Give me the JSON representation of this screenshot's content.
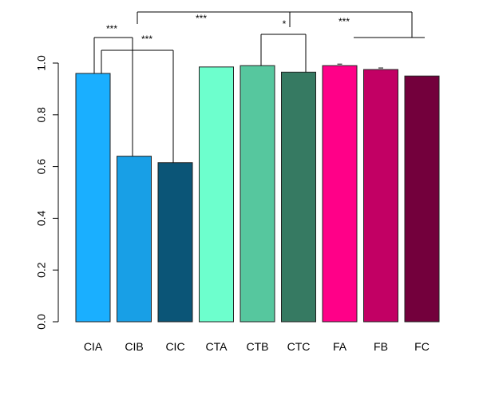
{
  "chart_data": {
    "type": "bar",
    "categories": [
      "CIA",
      "CIB",
      "CIC",
      "CTA",
      "CTB",
      "CTC",
      "FA",
      "FB",
      "FC"
    ],
    "values": [
      0.96,
      0.64,
      0.615,
      0.985,
      0.99,
      0.965,
      0.99,
      0.975,
      0.95
    ],
    "colors": [
      "#1AAFFF",
      "#189FE6",
      "#0B5577",
      "#6DFFCD",
      "#56C79E",
      "#367A62",
      "#FF0088",
      "#C20064",
      "#73003C"
    ],
    "ylim": [
      0,
      1
    ],
    "yticks": [
      0.0,
      0.2,
      0.4,
      0.6,
      0.8,
      1.0
    ],
    "ytick_labels": [
      "0.0",
      "0.2",
      "0.4",
      "0.6",
      "0.8",
      "1.0"
    ],
    "grid": false,
    "significance": [
      {
        "label": "***",
        "from": "CIA",
        "to": "CIB"
      },
      {
        "label": "***",
        "from": "CIA",
        "to": "CIC"
      },
      {
        "label": "*",
        "from": "CTB",
        "to": "CTC"
      },
      {
        "label": "***",
        "from": "CIB",
        "to": "FC"
      },
      {
        "label": "***",
        "from": "FA",
        "to": "FC"
      }
    ]
  }
}
